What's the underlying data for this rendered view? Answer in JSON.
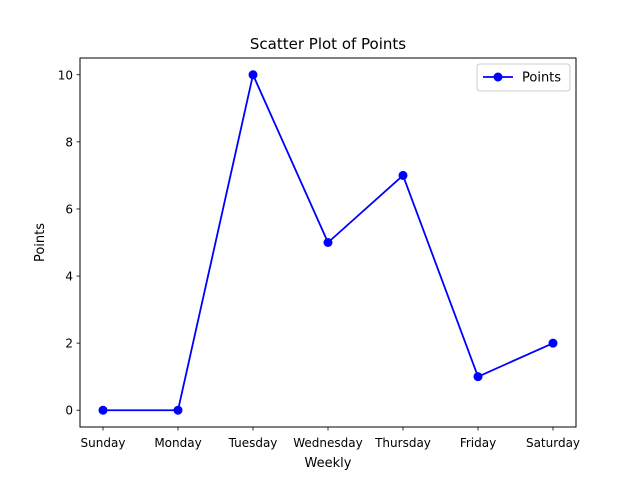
{
  "chart_data": {
    "type": "line",
    "title": "Scatter Plot of Points",
    "xlabel": "Weekly",
    "ylabel": "Points",
    "categories": [
      "Sunday",
      "Monday",
      "Tuesday",
      "Wednesday",
      "Thursday",
      "Friday",
      "Saturday"
    ],
    "series": [
      {
        "name": "Points",
        "values": [
          0,
          0,
          10,
          5,
          7,
          1,
          2
        ],
        "color": "#0000ff",
        "marker": "circle"
      }
    ],
    "yticks": [
      0,
      2,
      4,
      6,
      8,
      10
    ],
    "ylim": [
      -0.5,
      10.5
    ],
    "grid": false,
    "legend": "top-right"
  }
}
